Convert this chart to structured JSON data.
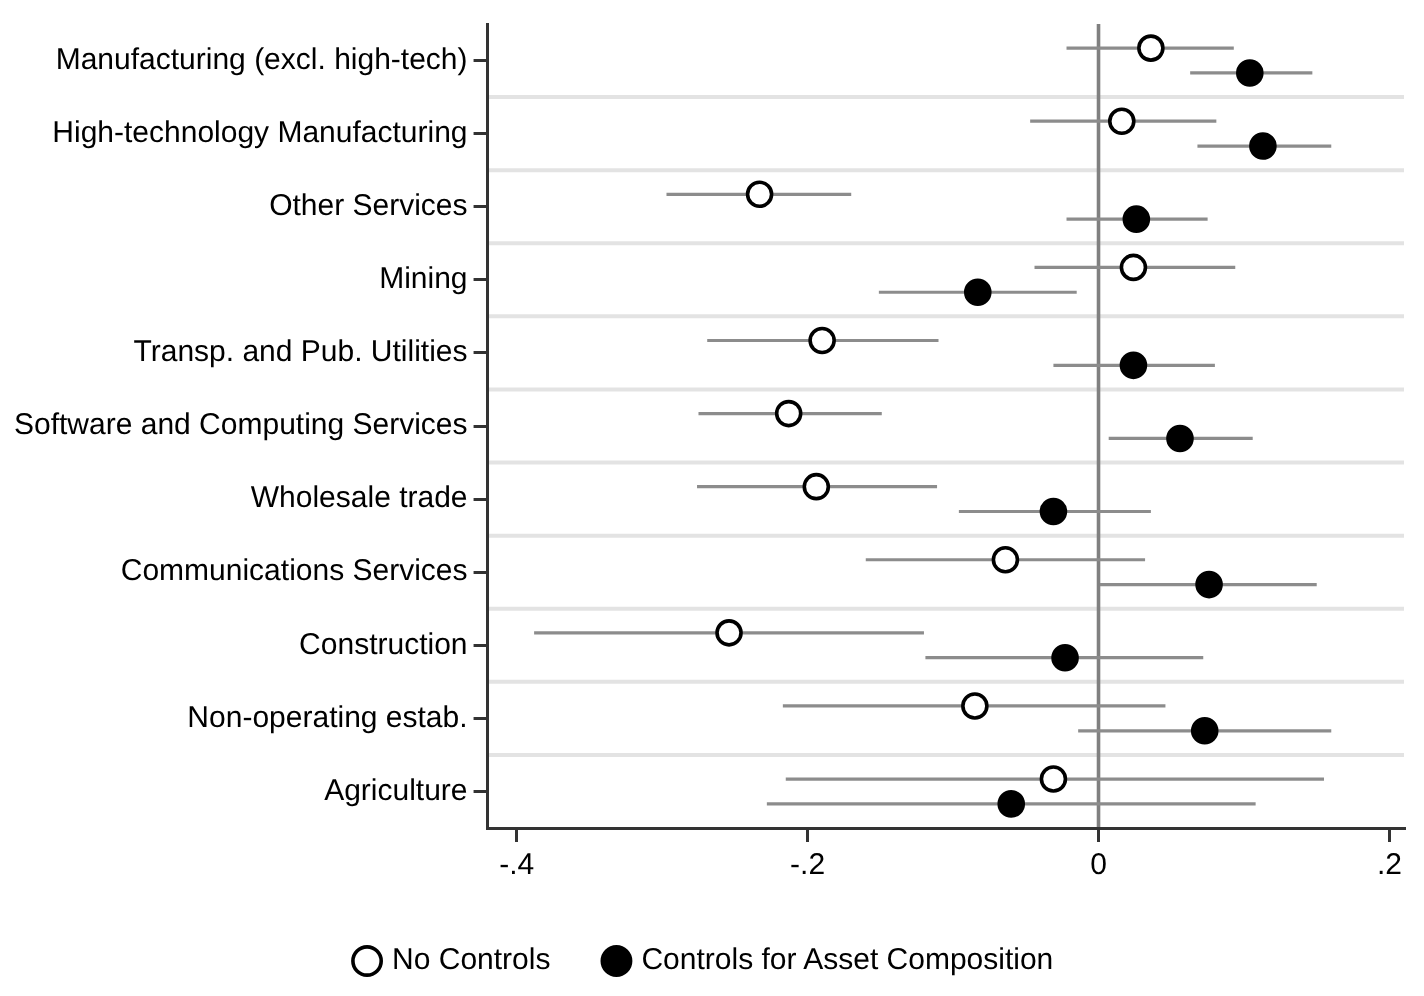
{
  "chart_data": {
    "type": "scatter",
    "orientation": "horizontal",
    "categories": [
      "Manufacturing (excl. high-tech)",
      "High-technology Manufacturing",
      "Other Services",
      "Mining",
      "Transp. and Pub. Utilities",
      "Software and Computing Services",
      "Wholesale trade",
      "Communications Services",
      "Construction",
      "Non-operating estab.",
      "Agriculture"
    ],
    "series": [
      {
        "name": "No Controls",
        "color": "#000000",
        "values": [
          0.036,
          0.016,
          -0.233,
          0.024,
          -0.19,
          -0.213,
          -0.194,
          -0.064,
          -0.254,
          -0.085,
          -0.031
        ],
        "errors": [
          [
            -0.022,
            0.093
          ],
          [
            -0.047,
            0.081
          ],
          [
            -0.297,
            -0.17
          ],
          [
            -0.044,
            0.094
          ],
          [
            -0.269,
            -0.11
          ],
          [
            -0.275,
            -0.149
          ],
          [
            -0.276,
            -0.111
          ],
          [
            -0.16,
            0.032
          ],
          [
            -0.388,
            -0.12
          ],
          [
            -0.217,
            0.046
          ],
          [
            -0.215,
            0.155
          ]
        ]
      },
      {
        "name": "Controls for Asset Composition",
        "color": "#000000",
        "values": [
          0.104,
          0.113,
          0.026,
          -0.083,
          0.024,
          0.056,
          -0.031,
          0.076,
          -0.023,
          0.073,
          -0.06
        ],
        "errors": [
          [
            0.063,
            0.147
          ],
          [
            0.068,
            0.16
          ],
          [
            -0.022,
            0.075
          ],
          [
            -0.151,
            -0.015
          ],
          [
            -0.031,
            0.08
          ],
          [
            0.007,
            0.106
          ],
          [
            -0.096,
            0.036
          ],
          [
            0.001,
            0.15
          ],
          [
            -0.119,
            0.072
          ],
          [
            -0.014,
            0.16
          ],
          [
            -0.228,
            0.108
          ]
        ]
      }
    ],
    "xlim": [
      -0.42,
      0.21
    ],
    "xticks": [
      {
        "value": -0.4,
        "label": "-.4"
      },
      {
        "value": -0.2,
        "label": "-.2"
      },
      0,
      {
        "value": 0.2,
        "label": ".2"
      }
    ],
    "ref_lines": [
      {
        "axis": "x",
        "value": 0,
        "color": "#808080"
      }
    ],
    "grid": "y",
    "legend": "bottom",
    "marker": "circle"
  }
}
